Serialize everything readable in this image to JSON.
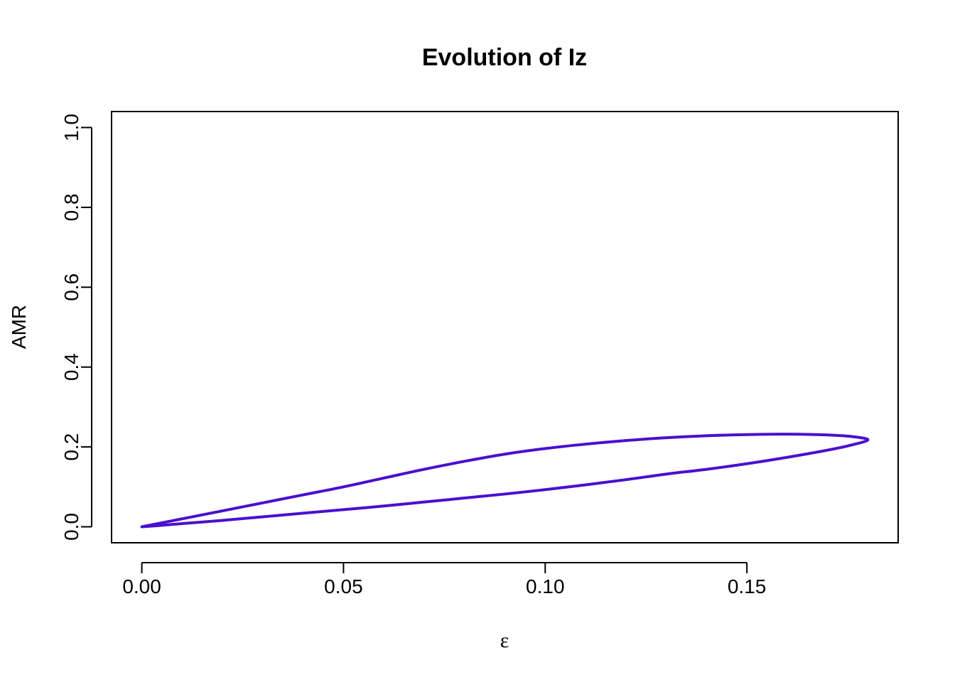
{
  "chart_data": {
    "type": "line",
    "title": "Evolution of Iz",
    "xlabel": "ε",
    "ylabel": "AMR",
    "xlim": [
      -0.0075,
      0.1875
    ],
    "ylim": [
      -0.04,
      1.04
    ],
    "x_ticks": [
      "0.00",
      "0.05",
      "0.10",
      "0.15"
    ],
    "x_tick_values": [
      0.0,
      0.05,
      0.1,
      0.15
    ],
    "y_ticks": [
      "0.0",
      "0.2",
      "0.4",
      "0.6",
      "0.8",
      "1.0"
    ],
    "y_tick_values": [
      0.0,
      0.2,
      0.4,
      0.6,
      0.8,
      1.0
    ],
    "grid": false,
    "line_color": "#4B0FCF",
    "series": [
      {
        "points": [
          [
            0.0,
            0.0
          ],
          [
            0.01,
            0.02
          ],
          [
            0.02,
            0.04
          ],
          [
            0.03,
            0.06
          ],
          [
            0.04,
            0.08
          ],
          [
            0.05,
            0.1
          ],
          [
            0.06,
            0.122
          ],
          [
            0.07,
            0.144
          ],
          [
            0.08,
            0.164
          ],
          [
            0.09,
            0.182
          ],
          [
            0.1,
            0.196
          ],
          [
            0.11,
            0.207
          ],
          [
            0.12,
            0.216
          ],
          [
            0.13,
            0.223
          ],
          [
            0.14,
            0.228
          ],
          [
            0.15,
            0.231
          ],
          [
            0.16,
            0.232
          ],
          [
            0.17,
            0.23
          ],
          [
            0.176,
            0.226
          ],
          [
            0.18,
            0.218
          ],
          [
            0.176,
            0.205
          ],
          [
            0.17,
            0.192
          ],
          [
            0.16,
            0.174
          ],
          [
            0.15,
            0.158
          ],
          [
            0.14,
            0.144
          ],
          [
            0.13,
            0.132
          ],
          [
            0.12,
            0.118
          ],
          [
            0.11,
            0.105
          ],
          [
            0.1,
            0.093
          ],
          [
            0.09,
            0.082
          ],
          [
            0.08,
            0.072
          ],
          [
            0.07,
            0.062
          ],
          [
            0.06,
            0.052
          ],
          [
            0.05,
            0.043
          ],
          [
            0.04,
            0.034
          ],
          [
            0.03,
            0.025
          ],
          [
            0.02,
            0.016
          ],
          [
            0.01,
            0.008
          ],
          [
            0.004,
            0.003
          ],
          [
            0.0,
            0.0
          ]
        ]
      }
    ]
  }
}
